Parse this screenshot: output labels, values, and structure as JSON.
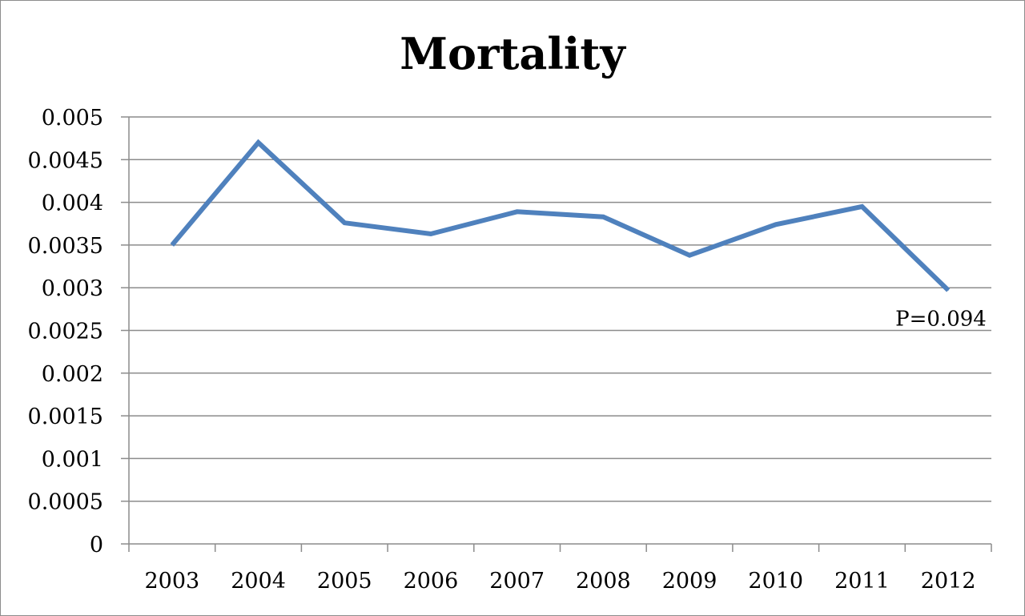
{
  "chart_data": {
    "type": "line",
    "title": "Mortality",
    "xlabel": "",
    "ylabel": "",
    "categories": [
      "2003",
      "2004",
      "2005",
      "2006",
      "2007",
      "2008",
      "2009",
      "2010",
      "2011",
      "2012"
    ],
    "series": [
      {
        "values": [
          0.0035,
          0.0047,
          0.00376,
          0.00363,
          0.00389,
          0.00383,
          0.00338,
          0.00374,
          0.00395,
          0.00297
        ],
        "color": "#4f81bd"
      }
    ],
    "ylim": [
      0,
      0.005
    ],
    "yticks": [
      "0",
      "0.0005",
      "0.001",
      "0.0015",
      "0.002",
      "0.0025",
      "0.003",
      "0.0035",
      "0.004",
      "0.0045",
      "0.005"
    ],
    "grid": true,
    "legend": "none",
    "annotations": [
      {
        "text": "P=0.094",
        "category": "2012"
      }
    ]
  }
}
